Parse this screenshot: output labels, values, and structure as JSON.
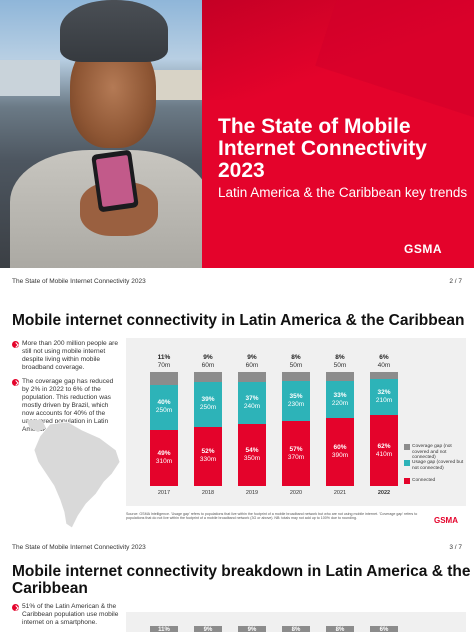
{
  "cover": {
    "title": "The State of Mobile Internet Connectivity 2023",
    "subtitle": "Latin America & the Caribbean key trends",
    "logo": "GSMA",
    "colors": {
      "red": "#e4032b",
      "teal": "#2db3b8",
      "gray": "#8c8c8c"
    }
  },
  "page2": {
    "running_head": "The State of Mobile Internet Connectivity 2023",
    "page_number": "2 / 7",
    "title": "Mobile internet connectivity in Latin America & the Caribbean",
    "bullets": [
      "More than 200 million people are still not using mobile internet despite living within mobile broadband coverage.",
      "The coverage gap has reduced by 2% in 2022 to 6% of the population. This reduction was mostly driven by Brazil, which now accounts for 40% of the uncovered population in Latin America."
    ],
    "source": "Source: GSMA Intelligence. 'Usage gap' refers to populations that live within the footprint of a mobile broadband network but who are not using mobile internet. 'Coverage gap' refers to populations that do not live within the footprint of a mobile broadband network (3G or above). NB: totals may not add up to 100% due to rounding.",
    "logo": "GSMA",
    "legend": {
      "coverage": "Coverage gap (not covered and not connected)",
      "usage": "Usage gap (covered but not connected)",
      "connected": "Connected"
    }
  },
  "chart_data": {
    "type": "bar",
    "stacked": true,
    "categories": [
      "2017",
      "2018",
      "2019",
      "2020",
      "2021",
      "2022"
    ],
    "series": [
      {
        "name": "Coverage gap (not covered and not connected)",
        "color": "#8c8c8c",
        "values": [
          11,
          9,
          9,
          8,
          8,
          6
        ],
        "labels": [
          "70m",
          "60m",
          "60m",
          "50m",
          "50m",
          "40m"
        ]
      },
      {
        "name": "Usage gap (covered but not connected)",
        "color": "#2db3b8",
        "values": [
          40,
          39,
          37,
          35,
          33,
          32
        ],
        "labels": [
          "250m",
          "250m",
          "240m",
          "230m",
          "220m",
          "210m"
        ]
      },
      {
        "name": "Connected",
        "color": "#e4032b",
        "values": [
          49,
          52,
          54,
          57,
          60,
          62
        ],
        "labels": [
          "310m",
          "330m",
          "350m",
          "370m",
          "390m",
          "410m"
        ]
      }
    ],
    "ylim": [
      0,
      100
    ],
    "highlight_category": "2022"
  },
  "page3": {
    "running_head": "The State of Mobile Internet Connectivity 2023",
    "page_number": "3 / 7",
    "title": "Mobile internet connectivity breakdown in Latin America & the Caribbean",
    "bullet": "51% of the Latin American & the Caribbean population use mobile internet on a smartphone.",
    "tags": [
      "11%",
      "9%",
      "9%",
      "8%",
      "8%",
      "6%"
    ]
  }
}
